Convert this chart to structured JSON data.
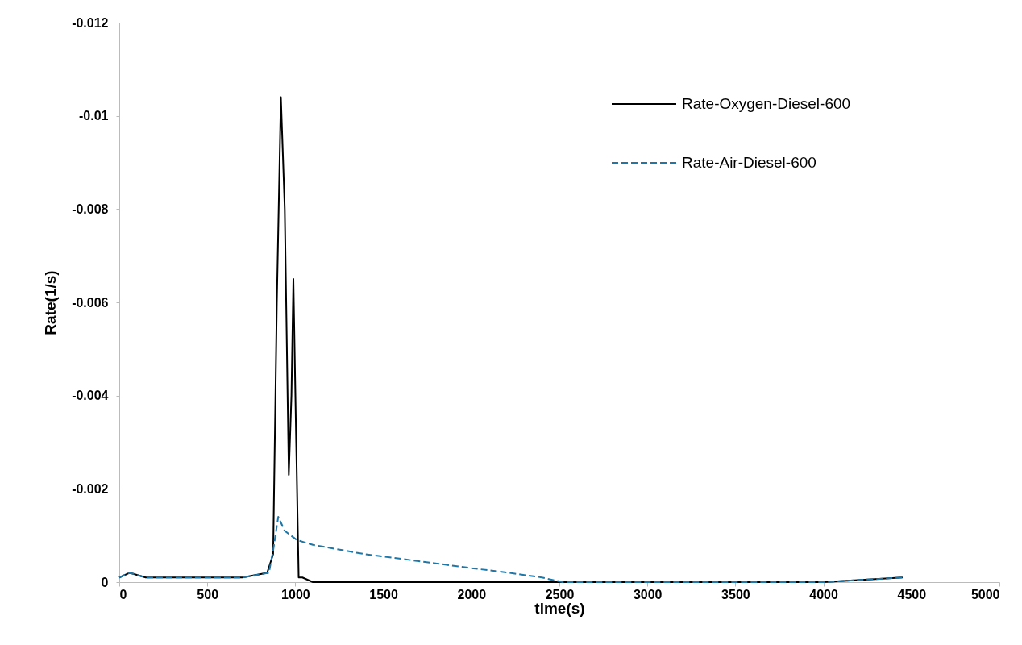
{
  "chart_data": {
    "type": "line",
    "xlabel": "time(s)",
    "ylabel": "Rate(1/s)",
    "xlim": [
      0,
      5000
    ],
    "xticks": [
      0,
      500,
      1000,
      1500,
      2000,
      2500,
      3000,
      3500,
      4000,
      4500,
      5000
    ],
    "ylim": [
      0,
      -0.012
    ],
    "yticks": [
      0,
      -0.002,
      -0.004,
      -0.006,
      -0.008,
      -0.01,
      -0.012
    ],
    "grid": false,
    "legend": "top right",
    "series": [
      {
        "name": "Rate-Oxygen-Diesel-600",
        "color": "#000000",
        "line_style": "solid",
        "x": [
          0,
          60,
          150,
          300,
          500,
          700,
          840,
          874,
          895,
          918,
          940,
          963,
          978,
          989,
          1005,
          1019,
          1040,
          1100,
          1200,
          1500,
          2000,
          2500,
          3000,
          3500,
          4000,
          4450
        ],
        "values": [
          -0.0001,
          -0.0002,
          -0.0001,
          -0.0001,
          -0.0001,
          -0.0001,
          -0.0002,
          -0.0006,
          -0.006,
          -0.0104,
          -0.008,
          -0.0023,
          -0.004,
          -0.0065,
          -0.003,
          -0.0001,
          -0.0001,
          0,
          0,
          0,
          0,
          0,
          0,
          0,
          0,
          -0.0001
        ]
      },
      {
        "name": "Rate-Air-Diesel-600",
        "color": "#1f77a8",
        "line_style": "dashed",
        "x": [
          0,
          60,
          150,
          300,
          500,
          700,
          850,
          875,
          903,
          940,
          1010,
          1100,
          1394,
          1600,
          1804,
          2000,
          2212,
          2400,
          2518,
          3000,
          3500,
          4000,
          4450
        ],
        "values": [
          -0.0001,
          -0.0002,
          -0.0001,
          -0.0001,
          -0.0001,
          -0.0001,
          -0.0002,
          -0.0007,
          -0.0014,
          -0.0011,
          -0.0009,
          -0.0008,
          -0.0006,
          -0.0005,
          -0.0004,
          -0.0003,
          -0.0002,
          -0.0001,
          0,
          0,
          0,
          0,
          -0.0001
        ]
      }
    ]
  }
}
